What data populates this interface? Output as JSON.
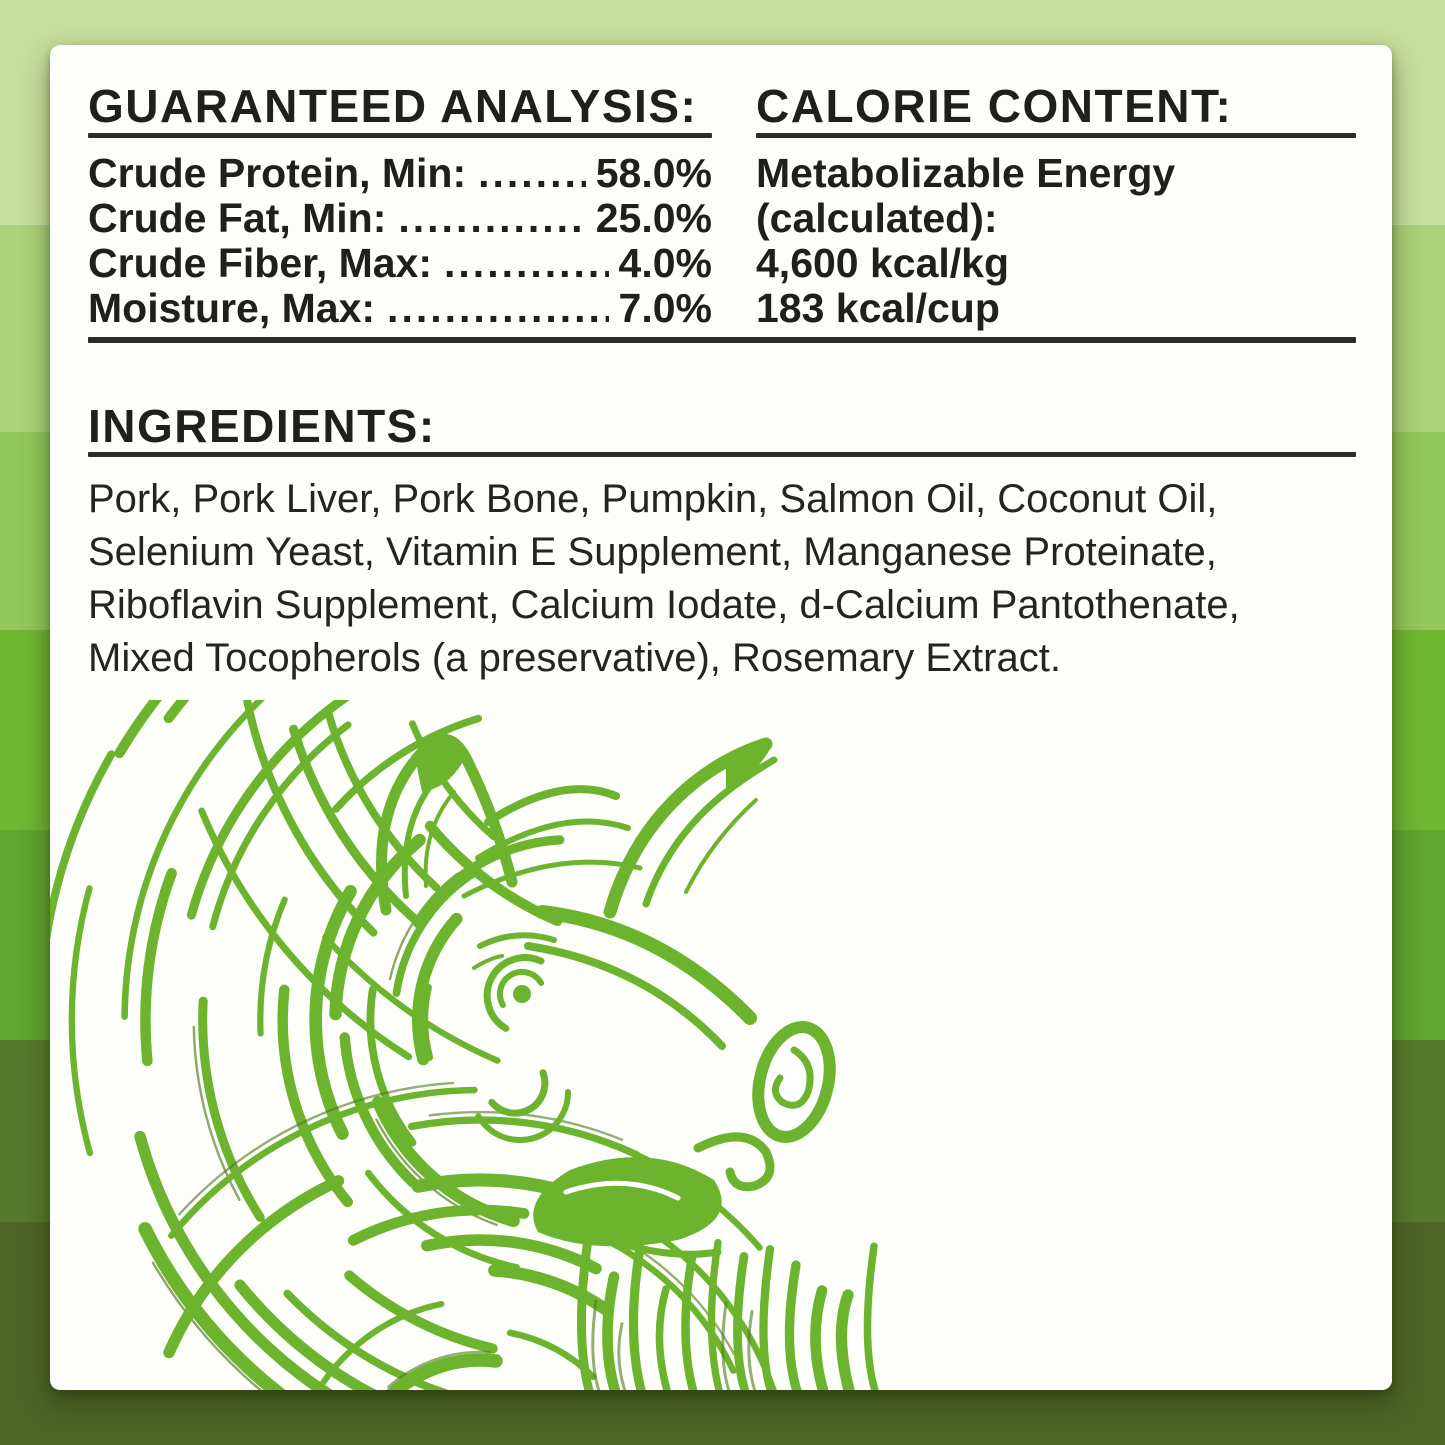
{
  "colors": {
    "pig_green": "#6cb32e",
    "pig_dark": "#4e7a1c",
    "panel_bg": "#fdfdfa",
    "text": "#1f1f1d",
    "bands": [
      "#c6df9e",
      "#abd279",
      "#93c75a",
      "#6fb733",
      "#5fa52e",
      "#567a2d",
      "#4c6526"
    ]
  },
  "analysis": {
    "heading": "GUARANTEED ANALYSIS:",
    "leader_dots": "....................................................................",
    "rows": [
      {
        "label": "Crude Protein, Min:",
        "value": "58.0%"
      },
      {
        "label": "Crude Fat, Min:",
        "value": "25.0%"
      },
      {
        "label": "Crude Fiber, Max:",
        "value": "4.0%"
      },
      {
        "label": "Moisture, Max:",
        "value": "7.0%"
      }
    ]
  },
  "calorie": {
    "heading": "CALORIE CONTENT:",
    "lines": [
      "Metabolizable Energy",
      "(calculated):",
      "4,600 kcal/kg",
      "183 kcal/cup"
    ]
  },
  "ingredients": {
    "heading": "INGREDIENTS:",
    "lines": [
      "Pork, Pork Liver, Pork Bone, Pumpkin, Salmon Oil, Coconut Oil,",
      "Selenium Yeast, Vitamin E Supplement, Manganese Proteinate,",
      "Riboflavin Supplement, Calcium Iodate, d-Calcium Pantothenate,",
      "Mixed Tocopherols (a preservative), Rosemary Extract."
    ]
  }
}
